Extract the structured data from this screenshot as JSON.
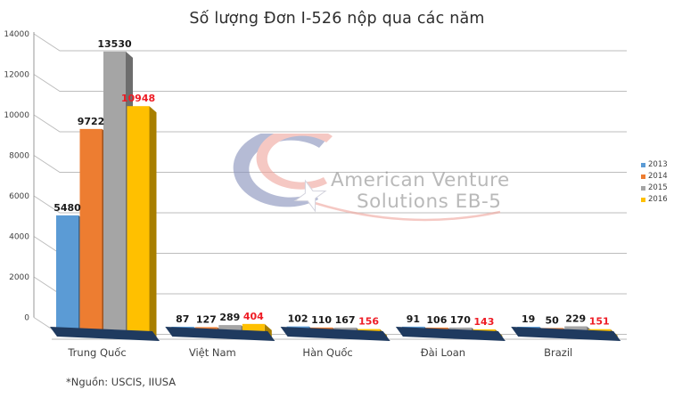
{
  "title": "Số lượng Đơn I-526 nộp qua các năm",
  "source_note": "*Nguồn: USCIS, IIUSA",
  "watermark": {
    "line1": "American Venture",
    "line2": "Solutions EB-5"
  },
  "legend": {
    "position": "right",
    "items": [
      {
        "label": "2013",
        "color": "#5B9BD5"
      },
      {
        "label": "2014",
        "color": "#ED7D31"
      },
      {
        "label": "2015",
        "color": "#A5A5A5"
      },
      {
        "label": "2016",
        "color": "#FFC000"
      }
    ]
  },
  "colors": {
    "platform": "#1F3A5F",
    "gridline": "#BDBDBD",
    "axis_line": "#9a9a9a",
    "floor_line": "#c8c8c8",
    "axis_text": "#404040",
    "value_label": "#1a1a1a",
    "value_label_2016": "#EE1C25",
    "watermark_blue": "#8892BC",
    "watermark_red": "#EFA8A0"
  },
  "chart_data": {
    "type": "bar",
    "variant": "3d-clustered-column",
    "title": "Số lượng Đơn I-526 nộp qua các năm",
    "categories": [
      "Trung Quốc",
      "Việt Nam",
      "Hàn Quốc",
      "Đài Loan",
      "Brazil"
    ],
    "series": [
      {
        "name": "2013",
        "color": "#5B9BD5",
        "values": [
          5480,
          87,
          102,
          91,
          19
        ]
      },
      {
        "name": "2014",
        "color": "#ED7D31",
        "values": [
          9722,
          127,
          110,
          106,
          50
        ]
      },
      {
        "name": "2015",
        "color": "#A5A5A5",
        "values": [
          13530,
          289,
          167,
          170,
          229
        ]
      },
      {
        "name": "2016",
        "color": "#FFC000",
        "values": [
          10948,
          404,
          156,
          143,
          151
        ],
        "value_label_color": "#EE1C25"
      }
    ],
    "xlabel": "",
    "ylabel": "",
    "ylim": [
      0,
      14000
    ],
    "ytick_step": 2000,
    "grid": true,
    "value_labels": true,
    "legend_position": "right"
  }
}
